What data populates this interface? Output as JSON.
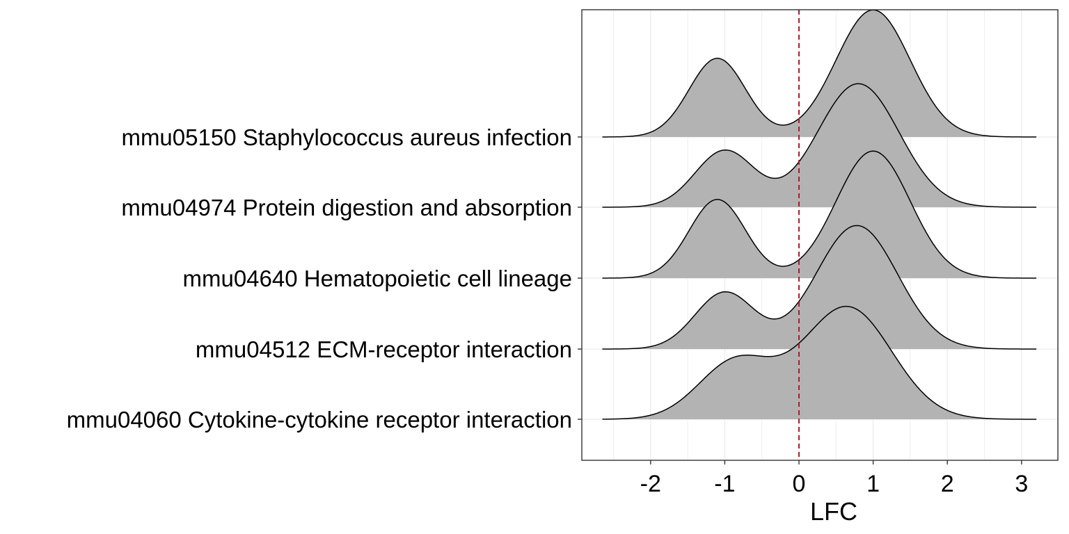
{
  "chart_data": {
    "type": "ridgeline",
    "title": "",
    "xlabel": "LFC",
    "ylabel": "",
    "xlim": [
      -2.85,
      3.5
    ],
    "x_ticks": [
      -2,
      -1,
      0,
      1,
      2,
      3
    ],
    "x_tick_labels": [
      "-2",
      "-1",
      "0",
      "1",
      "2",
      "3"
    ],
    "reference_line": {
      "x": 0,
      "style": "dashed",
      "color": "#b2182b"
    },
    "fill_color": "#b3b3b3",
    "grid": true,
    "density_x_range": [
      -2.65,
      3.2
    ],
    "categories": [
      "mmu05150 Staphylococcus aureus infection",
      "mmu04974 Protein digestion and absorption",
      "mmu04640 Hematopoietic cell lineage",
      "mmu04512 ECM-receptor interaction",
      "mmu04060 Cytokine-cytokine receptor interaction"
    ],
    "series": [
      {
        "category": "mmu05150 Staphylococcus aureus infection",
        "components": [
          {
            "weight": 0.32,
            "mean": -1.1,
            "sd": 0.38
          },
          {
            "weight": 0.68,
            "mean": 1.0,
            "sd": 0.5
          }
        ],
        "peak_height": 1.8
      },
      {
        "category": "mmu04974 Protein digestion and absorption",
        "components": [
          {
            "weight": 0.25,
            "mean": -1.0,
            "sd": 0.4
          },
          {
            "weight": 0.75,
            "mean": 0.8,
            "sd": 0.55
          }
        ],
        "peak_height": 1.75
      },
      {
        "category": "mmu04640 Hematopoietic cell lineage",
        "components": [
          {
            "weight": 0.32,
            "mean": -1.1,
            "sd": 0.38
          },
          {
            "weight": 0.68,
            "mean": 1.0,
            "sd": 0.5
          }
        ],
        "peak_height": 1.8
      },
      {
        "category": "mmu04512 ECM-receptor interaction",
        "components": [
          {
            "weight": 0.25,
            "mean": -1.0,
            "sd": 0.4
          },
          {
            "weight": 0.75,
            "mean": 0.78,
            "sd": 0.55
          }
        ],
        "peak_height": 1.75
      },
      {
        "category": "mmu04060 Cytokine-cytokine receptor interaction",
        "components": [
          {
            "weight": 0.3,
            "mean": -0.85,
            "sd": 0.5
          },
          {
            "weight": 0.7,
            "mean": 0.65,
            "sd": 0.6
          }
        ],
        "peak_height": 1.6
      }
    ]
  }
}
